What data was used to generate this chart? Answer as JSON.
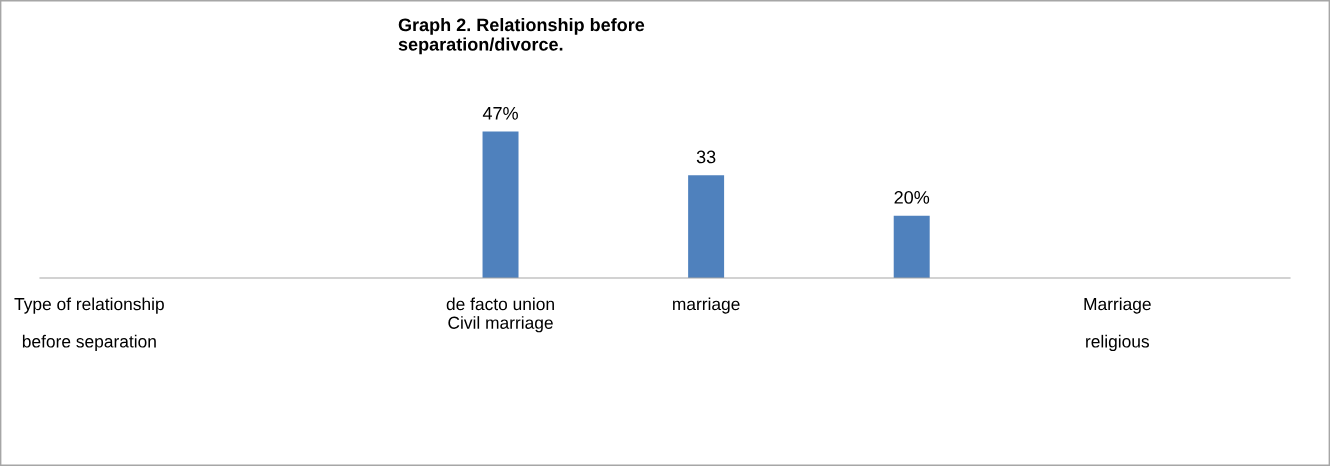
{
  "chart_data": {
    "type": "bar",
    "title": "Graph 2. Relationship before\nseparation/divorce.",
    "categories": [
      "Type of relationship\n\nbefore separation",
      null,
      "de facto union\nCivil marriage",
      "marriage",
      null,
      "Marriage\n\nreligious"
    ],
    "values": [
      null,
      null,
      47,
      33,
      20,
      null
    ],
    "value_labels": [
      null,
      null,
      "47%",
      "33",
      "20%",
      null
    ],
    "color": "#4f81bd",
    "grid": false,
    "legend": false
  }
}
